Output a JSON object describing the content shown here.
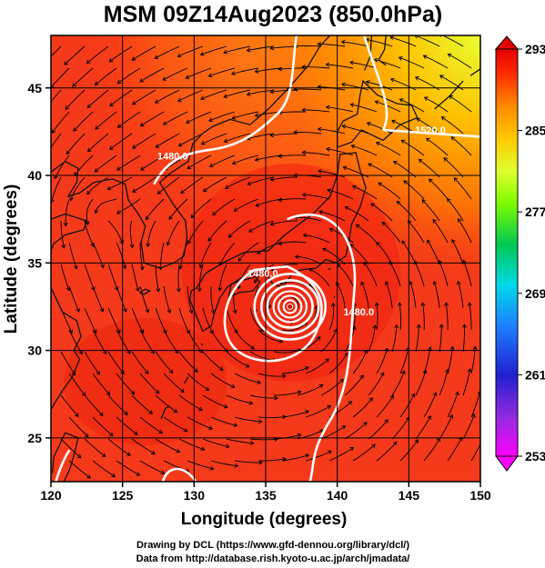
{
  "title": "MSM 09Z14Aug2023 (850.0hPa)",
  "credits": [
    "Drawing by DCL (https://www.gfd-dennou.org/library/dcl/)",
    "Data from http://database.rish.kyoto-u.ac.jp/arch/jmadata/"
  ],
  "chart_data": {
    "type": "heatmap",
    "title": "MSM 09Z14Aug2023 (850.0hPa)",
    "xlabel": "Longitude (degrees)",
    "ylabel": "Latitude  (degrees)",
    "xlim": [
      120,
      150
    ],
    "ylim": [
      22.5,
      48
    ],
    "xticks": [
      120,
      125,
      130,
      135,
      140,
      145,
      150
    ],
    "yticks": [
      25,
      30,
      35,
      40,
      45
    ],
    "grid": true,
    "overlays": [
      "wind streamlines",
      "geopotential height contours (white)",
      "coastlines"
    ],
    "contour_labels": [
      {
        "text": "1480.0",
        "lon": 128.5,
        "lat": 40.9
      },
      {
        "text": "1520.0",
        "lon": 146.5,
        "lat": 42.4
      },
      {
        "text": "1480.0",
        "lon": 134.8,
        "lat": 34.2
      },
      {
        "text": "1480.0",
        "lon": 141.5,
        "lat": 32.0
      }
    ],
    "typhoon_center": {
      "lon": 136.7,
      "lat": 32.5
    },
    "colorbar": {
      "min": 253,
      "max": 293,
      "ticks": [
        293,
        285,
        277,
        269,
        261,
        253
      ],
      "colors": [
        "#ff00ff",
        "#8a2be2",
        "#2020d0",
        "#1e90ff",
        "#00e5e5",
        "#00c853",
        "#7cfc00",
        "#e0ff30",
        "#ffc800",
        "#ff8a00",
        "#ff2a00",
        "#d60000"
      ]
    }
  }
}
